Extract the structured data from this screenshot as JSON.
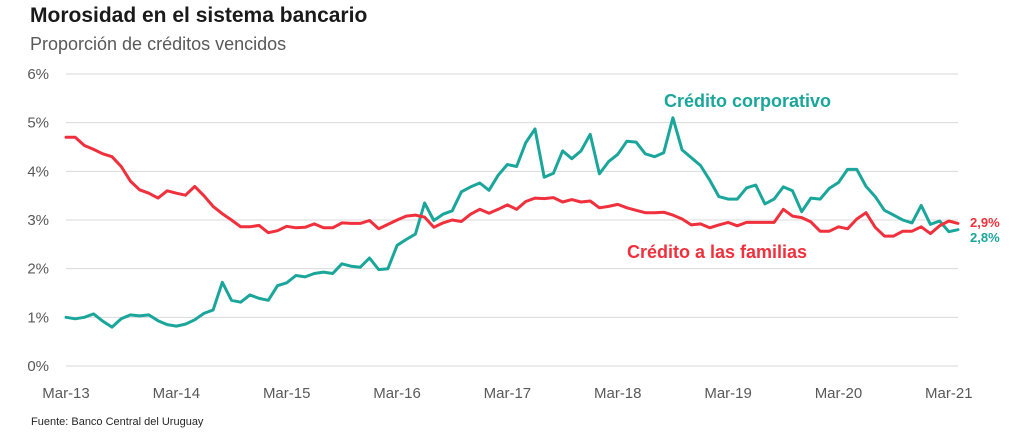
{
  "header": {
    "title": "Morosidad en el sistema bancario",
    "subtitle": "Proporción de créditos vencidos"
  },
  "footer": {
    "source": "Fuente: Banco Central del Uruguay"
  },
  "colors": {
    "corporate": "#1aa69a",
    "families": "#f0303c",
    "grid": "#d9d9d9"
  },
  "chart_data": {
    "type": "line",
    "x_start": "Mar-13",
    "x_frequency": "monthly",
    "xticks": [
      "Mar-13",
      "Mar-14",
      "Mar-15",
      "Mar-16",
      "Mar-17",
      "Mar-18",
      "Mar-19",
      "Mar-20",
      "Mar-21"
    ],
    "yticks": [
      "0%",
      "1%",
      "2%",
      "3%",
      "4%",
      "5%",
      "6%"
    ],
    "ylim": [
      0,
      6
    ],
    "grid": true,
    "legend": "inline labels",
    "series": [
      {
        "name": "Crédito corporativo",
        "label": "Crédito corporativo",
        "end_label": "2,8%",
        "color": "#1aa69a",
        "values": [
          1.0,
          0.97,
          1.0,
          1.07,
          0.92,
          0.8,
          0.97,
          1.05,
          1.03,
          1.05,
          0.93,
          0.85,
          0.82,
          0.86,
          0.95,
          1.08,
          1.15,
          1.72,
          1.35,
          1.31,
          1.46,
          1.39,
          1.35,
          1.65,
          1.71,
          1.86,
          1.83,
          1.9,
          1.93,
          1.9,
          2.1,
          2.05,
          2.03,
          2.22,
          1.98,
          2.0,
          2.48,
          2.6,
          2.71,
          3.35,
          2.99,
          3.12,
          3.19,
          3.58,
          3.68,
          3.76,
          3.61,
          3.92,
          4.14,
          4.1,
          4.59,
          4.87,
          3.88,
          3.96,
          4.42,
          4.26,
          4.42,
          4.76,
          3.95,
          4.2,
          4.35,
          4.62,
          4.6,
          4.36,
          4.3,
          4.38,
          5.1,
          4.44,
          4.28,
          4.12,
          3.82,
          3.48,
          3.43,
          3.43,
          3.66,
          3.72,
          3.33,
          3.43,
          3.68,
          3.6,
          3.17,
          3.45,
          3.43,
          3.65,
          3.77,
          4.04,
          4.04,
          3.69,
          3.48,
          3.2,
          3.1,
          3.0,
          2.94,
          3.3,
          2.91,
          2.98,
          2.76,
          2.8
        ]
      },
      {
        "name": "Crédito a las familias",
        "label": "Crédito a las familias",
        "end_label": "2,9%",
        "color": "#f0303c",
        "values": [
          4.7,
          4.7,
          4.53,
          4.45,
          4.36,
          4.3,
          4.1,
          3.8,
          3.62,
          3.55,
          3.45,
          3.6,
          3.55,
          3.51,
          3.69,
          3.5,
          3.28,
          3.13,
          3.0,
          2.86,
          2.86,
          2.89,
          2.74,
          2.78,
          2.87,
          2.84,
          2.85,
          2.92,
          2.84,
          2.84,
          2.94,
          2.93,
          2.93,
          2.99,
          2.82,
          2.91,
          3.0,
          3.08,
          3.1,
          3.06,
          2.85,
          2.94,
          3.0,
          2.97,
          3.12,
          3.22,
          3.14,
          3.22,
          3.31,
          3.22,
          3.38,
          3.45,
          3.44,
          3.46,
          3.37,
          3.42,
          3.37,
          3.39,
          3.25,
          3.28,
          3.32,
          3.25,
          3.2,
          3.15,
          3.15,
          3.16,
          3.1,
          3.02,
          2.9,
          2.92,
          2.84,
          2.9,
          2.95,
          2.88,
          2.95,
          2.95,
          2.95,
          2.95,
          3.22,
          3.08,
          3.05,
          2.96,
          2.77,
          2.77,
          2.86,
          2.82,
          3.02,
          3.15,
          2.85,
          2.67,
          2.67,
          2.77,
          2.77,
          2.86,
          2.72,
          2.88,
          2.98,
          2.93
        ]
      }
    ]
  }
}
